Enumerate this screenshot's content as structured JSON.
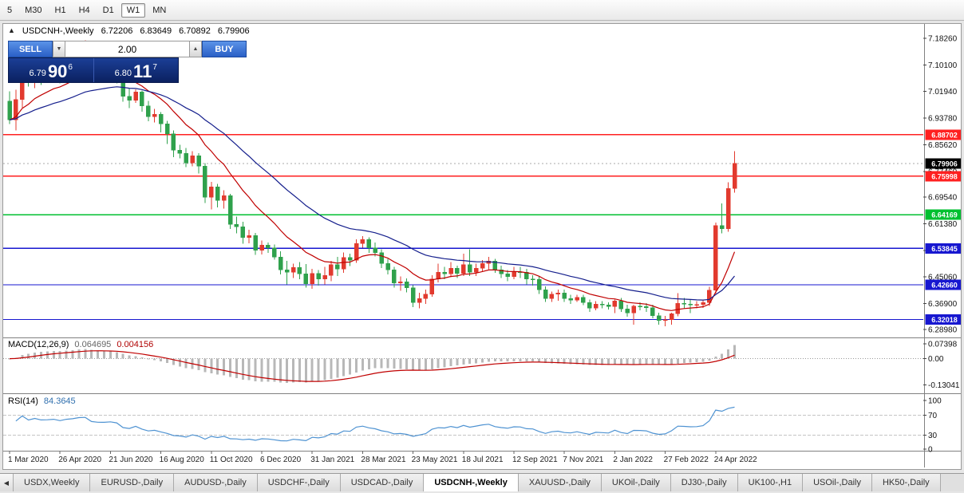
{
  "toolbar": {
    "timeframes": [
      "5",
      "M30",
      "H1",
      "H4",
      "D1",
      "W1",
      "MN"
    ],
    "active": "W1"
  },
  "icons": {
    "spinner_down": "▼",
    "spinner_up": "▲",
    "scroll_left": "◀",
    "direction_up": "▲"
  },
  "symbol_header": {
    "direction_icon": "▲",
    "symbol": "USDCNH-,Weekly",
    "open": "6.72206",
    "high": "6.83649",
    "low": "6.70892",
    "close": "6.79906"
  },
  "trade_panel": {
    "sell_label": "SELL",
    "buy_label": "BUY",
    "volume": "2.00",
    "sell_price_small": "6.79",
    "sell_price_big": "90",
    "sell_price_sup": "6",
    "buy_price_small": "6.80",
    "buy_price_big": "11",
    "buy_price_sup": "7"
  },
  "chart_data": {
    "type": "candlestick",
    "symbol": "USDCNH-",
    "timeframe": "Weekly",
    "ohlc_current": {
      "open": 6.72206,
      "high": 6.83649,
      "low": 6.70892,
      "close": 6.79906
    },
    "current_price": "6.79906",
    "x_labels": [
      "1 Mar 2020",
      "26 Apr 2020",
      "21 Jun 2020",
      "16 Aug 2020",
      "11 Oct 2020",
      "6 Dec 2020",
      "31 Jan 2021",
      "28 Mar 2021",
      "23 May 2021",
      "18 Jul 2021",
      "12 Sep 2021",
      "7 Nov 2021",
      "2 Jan 2022",
      "27 Feb 2022",
      "24 Apr 2022"
    ],
    "label_interval_weeks": 8,
    "price_ticks": [
      "7.18260",
      "7.10100",
      "7.01940",
      "6.93780",
      "6.85620",
      "6.77460",
      "6.69540",
      "6.61380",
      "6.53220",
      "6.45060",
      "6.36900",
      "6.28980"
    ],
    "hlines": [
      {
        "label": "6.88702",
        "price": 6.88702,
        "color": "#ff2020"
      },
      {
        "label": "6.75998",
        "price": 6.75998,
        "color": "#ff2020"
      },
      {
        "label": "6.64169",
        "price": 6.64169,
        "color": "#00c030"
      },
      {
        "label": "6.53845",
        "price": 6.53845,
        "color": "#1717d0"
      },
      {
        "label": "6.42660",
        "price": 6.4266,
        "color": "#1717d0"
      },
      {
        "label": "6.32018",
        "price": 6.32018,
        "color": "#1717d0"
      }
    ],
    "colors": {
      "bull": "#e23a2e",
      "bear": "#2fa14c",
      "ma_fast": "#c00000",
      "ma_slow": "#141e8c",
      "macd_hist": "#b8b8b8",
      "macd_signal": "#c00000",
      "rsi_line": "#4f93d2",
      "current_badge": "#000000"
    },
    "ma": {
      "fast_period": 12,
      "slow_period": 30
    },
    "candles": [
      [
        6.99,
        7.02,
        6.92,
        6.932
      ],
      [
        6.932,
        7.025,
        6.9,
        6.995
      ],
      [
        6.995,
        7.165,
        6.97,
        7.11
      ],
      [
        7.11,
        7.135,
        7.035,
        7.052
      ],
      [
        7.052,
        7.105,
        7.03,
        7.091
      ],
      [
        7.091,
        7.1,
        7.04,
        7.068
      ],
      [
        7.068,
        7.09,
        7.048,
        7.072
      ],
      [
        7.072,
        7.105,
        7.058,
        7.082
      ],
      [
        7.082,
        7.095,
        7.045,
        7.064
      ],
      [
        7.064,
        7.1,
        7.052,
        7.092
      ],
      [
        7.092,
        7.12,
        7.078,
        7.104
      ],
      [
        7.104,
        7.135,
        7.088,
        7.127
      ],
      [
        7.127,
        7.177,
        7.105,
        7.132
      ],
      [
        7.132,
        7.15,
        7.058,
        7.082
      ],
      [
        7.082,
        7.1,
        7.05,
        7.073
      ],
      [
        7.073,
        7.095,
        7.055,
        7.072
      ],
      [
        7.072,
        7.1,
        7.058,
        7.079
      ],
      [
        7.079,
        7.09,
        7.044,
        7.067
      ],
      [
        7.067,
        7.08,
        6.988,
        7.005
      ],
      [
        7.005,
        7.03,
        6.968,
        6.992
      ],
      [
        6.992,
        7.026,
        6.984,
        7.018
      ],
      [
        7.018,
        7.022,
        6.958,
        6.975
      ],
      [
        6.975,
        6.99,
        6.928,
        6.942
      ],
      [
        6.942,
        6.966,
        6.924,
        6.95
      ],
      [
        6.95,
        6.956,
        6.894,
        6.92
      ],
      [
        6.92,
        6.93,
        6.858,
        6.89
      ],
      [
        6.89,
        6.9,
        6.818,
        6.84
      ],
      [
        6.84,
        6.856,
        6.814,
        6.83
      ],
      [
        6.83,
        6.846,
        6.788,
        6.8
      ],
      [
        6.8,
        6.836,
        6.79,
        6.822
      ],
      [
        6.822,
        6.83,
        6.768,
        6.79
      ],
      [
        6.79,
        6.8,
        6.678,
        6.695
      ],
      [
        6.695,
        6.742,
        6.658,
        6.727
      ],
      [
        6.727,
        6.736,
        6.664,
        6.685
      ],
      [
        6.685,
        6.716,
        6.66,
        6.7
      ],
      [
        6.7,
        6.706,
        6.598,
        6.612
      ],
      [
        6.612,
        6.636,
        6.584,
        6.605
      ],
      [
        6.605,
        6.62,
        6.553,
        6.572
      ],
      [
        6.572,
        6.596,
        6.554,
        6.578
      ],
      [
        6.578,
        6.586,
        6.518,
        6.532
      ],
      [
        6.532,
        6.562,
        6.52,
        6.548
      ],
      [
        6.548,
        6.556,
        6.524,
        6.54
      ],
      [
        6.54,
        6.55,
        6.504,
        6.512
      ],
      [
        6.512,
        6.53,
        6.458,
        6.472
      ],
      [
        6.472,
        6.5,
        6.428,
        6.465
      ],
      [
        6.465,
        6.492,
        6.448,
        6.48
      ],
      [
        6.48,
        6.496,
        6.444,
        6.46
      ],
      [
        6.46,
        6.49,
        6.418,
        6.43
      ],
      [
        6.43,
        6.476,
        6.414,
        6.462
      ],
      [
        6.462,
        6.472,
        6.424,
        6.445
      ],
      [
        6.445,
        6.482,
        6.428,
        6.455
      ],
      [
        6.455,
        6.5,
        6.438,
        6.488
      ],
      [
        6.488,
        6.512,
        6.454,
        6.475
      ],
      [
        6.475,
        6.526,
        6.464,
        6.51
      ],
      [
        6.51,
        6.522,
        6.484,
        6.502
      ],
      [
        6.502,
        6.566,
        6.494,
        6.553
      ],
      [
        6.553,
        6.576,
        6.54,
        6.566
      ],
      [
        6.566,
        6.572,
        6.524,
        6.54
      ],
      [
        6.54,
        6.556,
        6.514,
        6.525
      ],
      [
        6.525,
        6.536,
        6.478,
        6.492
      ],
      [
        6.492,
        6.506,
        6.458,
        6.473
      ],
      [
        6.473,
        6.482,
        6.418,
        6.432
      ],
      [
        6.432,
        6.452,
        6.408,
        6.436
      ],
      [
        6.436,
        6.446,
        6.404,
        6.418
      ],
      [
        6.418,
        6.426,
        6.358,
        6.372
      ],
      [
        6.372,
        6.402,
        6.354,
        6.385
      ],
      [
        6.385,
        6.412,
        6.368,
        6.398
      ],
      [
        6.398,
        6.456,
        6.39,
        6.445
      ],
      [
        6.445,
        6.492,
        6.434,
        6.465
      ],
      [
        6.465,
        6.482,
        6.444,
        6.46
      ],
      [
        6.46,
        6.496,
        6.45,
        6.478
      ],
      [
        6.478,
        6.486,
        6.448,
        6.462
      ],
      [
        6.462,
        6.522,
        6.454,
        6.488
      ],
      [
        6.488,
        6.536,
        6.454,
        6.465
      ],
      [
        6.465,
        6.492,
        6.454,
        6.478
      ],
      [
        6.478,
        6.502,
        6.468,
        6.492
      ],
      [
        6.492,
        6.512,
        6.474,
        6.5
      ],
      [
        6.5,
        6.506,
        6.464,
        6.472
      ],
      [
        6.472,
        6.486,
        6.448,
        6.46
      ],
      [
        6.46,
        6.472,
        6.438,
        6.452
      ],
      [
        6.452,
        6.482,
        6.444,
        6.466
      ],
      [
        6.466,
        6.482,
        6.448,
        6.465
      ],
      [
        6.465,
        6.476,
        6.428,
        6.445
      ],
      [
        6.445,
        6.456,
        6.424,
        6.443
      ],
      [
        6.443,
        6.452,
        6.398,
        6.412
      ],
      [
        6.412,
        6.422,
        6.374,
        6.385
      ],
      [
        6.385,
        6.406,
        6.374,
        6.398
      ],
      [
        6.398,
        6.412,
        6.378,
        6.402
      ],
      [
        6.402,
        6.412,
        6.374,
        6.385
      ],
      [
        6.385,
        6.396,
        6.368,
        6.38
      ],
      [
        6.38,
        6.396,
        6.374,
        6.388
      ],
      [
        6.388,
        6.396,
        6.364,
        6.372
      ],
      [
        6.372,
        6.382,
        6.344,
        6.355
      ],
      [
        6.355,
        6.376,
        6.348,
        6.368
      ],
      [
        6.368,
        6.376,
        6.354,
        6.365
      ],
      [
        6.365,
        6.373,
        6.351,
        6.36
      ],
      [
        6.36,
        6.381,
        6.34,
        6.377
      ],
      [
        6.377,
        6.386,
        6.344,
        6.353
      ],
      [
        6.353,
        6.366,
        6.329,
        6.34
      ],
      [
        6.34,
        6.366,
        6.304,
        6.361
      ],
      [
        6.361,
        6.373,
        6.349,
        6.36
      ],
      [
        6.36,
        6.371,
        6.344,
        6.356
      ],
      [
        6.356,
        6.366,
        6.324,
        6.332
      ],
      [
        6.332,
        6.341,
        6.304,
        6.317
      ],
      [
        6.317,
        6.331,
        6.3,
        6.32
      ],
      [
        6.32,
        6.341,
        6.304,
        6.338
      ],
      [
        6.338,
        6.401,
        6.33,
        6.37
      ],
      [
        6.37,
        6.386,
        6.354,
        6.368
      ],
      [
        6.368,
        6.381,
        6.34,
        6.365
      ],
      [
        6.365,
        6.376,
        6.354,
        6.366
      ],
      [
        6.366,
        6.381,
        6.356,
        6.372
      ],
      [
        6.372,
        6.421,
        6.362,
        6.41
      ],
      [
        6.41,
        6.618,
        6.4,
        6.608
      ],
      [
        6.608,
        6.676,
        6.584,
        6.598
      ],
      [
        6.598,
        6.741,
        6.589,
        6.722
      ],
      [
        6.72206,
        6.83649,
        6.70892,
        6.79906
      ]
    ],
    "indicators": {
      "macd": {
        "label": "MACD(12,26,9)",
        "value_main": "0.064695",
        "value_signal": "0.004156",
        "params": [
          12,
          26,
          9
        ],
        "axis_labels": [
          "0.07398",
          "0.00",
          "-0.13041"
        ]
      },
      "rsi": {
        "label": "RSI(14)",
        "value": "84.3645",
        "period": 14,
        "axis_labels": [
          "100",
          "70",
          "30",
          "0"
        ],
        "levels": [
          70,
          30
        ]
      }
    }
  },
  "tabs": {
    "active_index": 5,
    "items": [
      "USDX,Weekly",
      "EURUSD-,Daily",
      "AUDUSD-,Daily",
      "USDCHF-,Daily",
      "USDCAD-,Daily",
      "USDCNH-,Weekly",
      "XAUUSD-,Daily",
      "UKOil-,Daily",
      "DJ30-,Daily",
      "UK100-,H1",
      "USOil-,Daily",
      "HK50-,Daily"
    ]
  }
}
